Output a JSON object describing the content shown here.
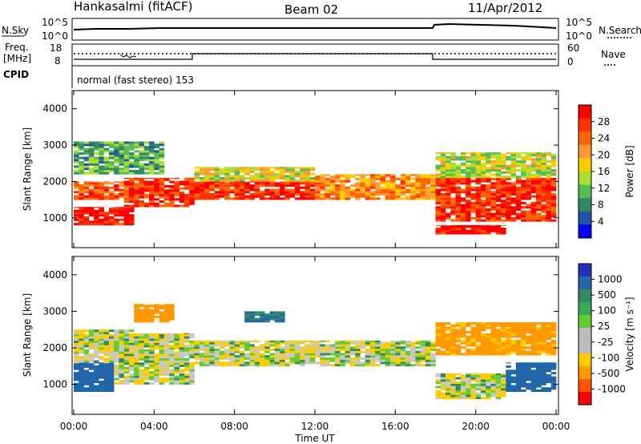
{
  "header": {
    "station": "Hankasalmi (fitACF)",
    "beam": "Beam 02",
    "date": "11/Apr/2012"
  },
  "noise_panel": {
    "left_label": "N.Sky",
    "right_label": "N.Search",
    "left_ticks": [
      "10^5",
      "10^0"
    ],
    "right_ticks": [
      "10^5",
      "10^0"
    ]
  },
  "freq_panel": {
    "left_label_1": "Freq.",
    "left_label_2": "[MHz]",
    "left_ticks": [
      "18",
      "8"
    ],
    "right_label": "Nave",
    "right_ticks": [
      "60",
      "0"
    ]
  },
  "cpid_panel": {
    "label": "CPID",
    "text": "normal (fast stereo) 153"
  },
  "power_colorbar": {
    "label": "Power [dB]",
    "ticks": [
      "28",
      "24",
      "20",
      "16",
      "12",
      "8",
      "4"
    ],
    "colors": [
      "#ff0000",
      "#ff3300",
      "#ff6600",
      "#ff9933",
      "#ffcc00",
      "#aadd33",
      "#55bb55",
      "#338866",
      "#2255aa",
      "#0000ff"
    ]
  },
  "velocity_colorbar": {
    "label": "Velocity [m s⁻¹]",
    "ticks": [
      "1000",
      "500",
      "100",
      "25",
      "-25",
      "-100",
      "-500",
      "-1000"
    ],
    "colors": [
      "#2233bb",
      "#2266aa",
      "#338866",
      "#33aa55",
      "#66cc33",
      "#bbbbbb",
      "#bbbbbb",
      "#ffcc00",
      "#ff9900",
      "#ff5500",
      "#ff0000"
    ]
  },
  "chart_data": [
    {
      "type": "heatmap",
      "panel": "power",
      "ylabel": "Slant Range [km]",
      "xlabel": "",
      "ylim": [
        180,
        4500
      ],
      "xlim": [
        0,
        24
      ],
      "yticks": [
        1000,
        2000,
        3000,
        4000
      ],
      "xticks": [
        0,
        4,
        8,
        12,
        16,
        20,
        24
      ],
      "colorbar_range_db": [
        0,
        30
      ],
      "bands": [
        {
          "t0": 0.0,
          "t1": 3.0,
          "r0": 800,
          "r1": 1300,
          "db": 28
        },
        {
          "t0": 0.0,
          "t1": 3.0,
          "r0": 1500,
          "r1": 2000,
          "db": 24
        },
        {
          "t0": 0.0,
          "t1": 4.5,
          "r0": 2200,
          "r1": 3100,
          "db": 10
        },
        {
          "t0": 2.5,
          "t1": 6.0,
          "r0": 1300,
          "r1": 2100,
          "db": 26
        },
        {
          "t0": 6.0,
          "t1": 12.0,
          "r0": 1500,
          "r1": 2000,
          "db": 26
        },
        {
          "t0": 6.0,
          "t1": 12.0,
          "r0": 2000,
          "r1": 2400,
          "db": 16
        },
        {
          "t0": 12.0,
          "t1": 18.0,
          "r0": 1500,
          "r1": 2200,
          "db": 20
        },
        {
          "t0": 18.0,
          "t1": 21.5,
          "r0": 550,
          "r1": 800,
          "db": 28
        },
        {
          "t0": 18.0,
          "t1": 24.0,
          "r0": 900,
          "r1": 2100,
          "db": 26
        },
        {
          "t0": 18.0,
          "t1": 24.0,
          "r0": 2100,
          "r1": 2800,
          "db": 14
        }
      ]
    },
    {
      "type": "heatmap",
      "panel": "velocity",
      "ylabel": "Slant Range [km]",
      "xlabel": "Time UT",
      "ylim": [
        180,
        4500
      ],
      "xlim": [
        0,
        24
      ],
      "yticks": [
        1000,
        2000,
        3000,
        4000
      ],
      "xticks": [
        0,
        4,
        8,
        12,
        16,
        20,
        24
      ],
      "xtick_labels": [
        "00:00",
        "04:00",
        "08:00",
        "12:00",
        "16:00",
        "20:00",
        "00:00"
      ],
      "bands": [
        {
          "t0": 0.0,
          "t1": 2.0,
          "r0": 800,
          "r1": 1600,
          "v": 300
        },
        {
          "t0": 0.0,
          "t1": 3.0,
          "r0": 1600,
          "r1": 2500,
          "v": 0
        },
        {
          "t0": 2.0,
          "t1": 6.0,
          "r0": 1000,
          "r1": 2400,
          "v": 0
        },
        {
          "t0": 3.0,
          "t1": 5.0,
          "r0": 2700,
          "r1": 3200,
          "v": -200
        },
        {
          "t0": 6.0,
          "t1": 18.0,
          "r0": 1500,
          "r1": 2200,
          "v": 0
        },
        {
          "t0": 8.5,
          "t1": 10.5,
          "r0": 2700,
          "r1": 3000,
          "v": 200
        },
        {
          "t0": 18.0,
          "t1": 21.5,
          "r0": 600,
          "r1": 1300,
          "v": 0
        },
        {
          "t0": 21.5,
          "t1": 24.0,
          "r0": 800,
          "r1": 1600,
          "v": 400
        },
        {
          "t0": 18.0,
          "t1": 24.0,
          "r0": 1800,
          "r1": 2700,
          "v": -150
        }
      ]
    }
  ]
}
